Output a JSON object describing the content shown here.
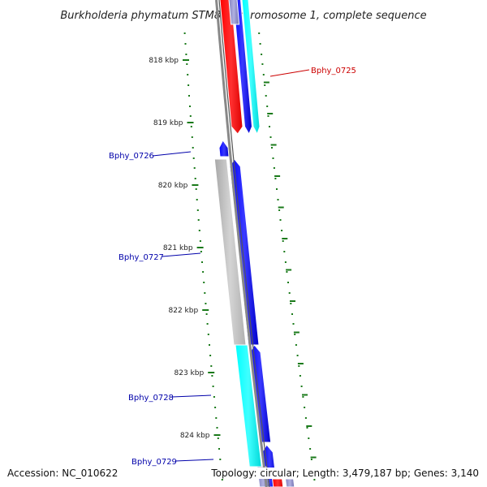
{
  "title": "Burkholderia phymatum STM815 chromosome 1, complete sequence",
  "ticks": [
    {
      "label": "818 kbp",
      "kbp": 818
    },
    {
      "label": "819 kbp",
      "kbp": 819
    },
    {
      "label": "820 kbp",
      "kbp": 820
    },
    {
      "label": "821 kbp",
      "kbp": 821
    },
    {
      "label": "822 kbp",
      "kbp": 822
    },
    {
      "label": "823 kbp",
      "kbp": 823
    },
    {
      "label": "824 kbp",
      "kbp": 824
    }
  ],
  "gene_labels": [
    {
      "name": "Bphy_0725",
      "color": "#cc0000"
    },
    {
      "name": "Bphy_0726",
      "color": "#0000aa"
    },
    {
      "name": "Bphy_0727",
      "color": "#0000aa"
    },
    {
      "name": "Bphy_0728",
      "color": "#0000aa"
    },
    {
      "name": "Bphy_0729",
      "color": "#0000aa"
    }
  ],
  "colors": {
    "backbone": "#888888",
    "tick_mark": "#1a7a1a",
    "red_gene": "#ff0000",
    "blue_gene": "#0000ee",
    "cyan_gene": "#00eeee",
    "gray_gene": "#bbbbbb",
    "lavender": "#9999cc"
  },
  "footer": {
    "accession": "Accession: NC_010622",
    "topology": "Topology: circular; Length: 3,479,187 bp; Genes: 3,140"
  }
}
